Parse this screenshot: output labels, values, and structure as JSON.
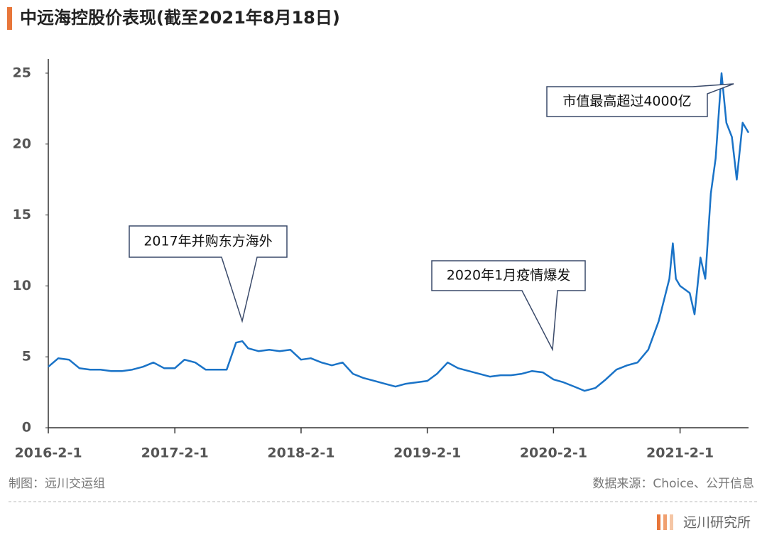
{
  "chart_data": {
    "type": "line",
    "title": "中远海控股价表现(截至2021年8月18日)",
    "x": [
      "2016-2-1",
      "2016-3-1",
      "2016-4-1",
      "2016-5-1",
      "2016-6-1",
      "2016-7-1",
      "2016-8-1",
      "2016-9-1",
      "2016-10-1",
      "2016-11-1",
      "2016-12-1",
      "2017-1-1",
      "2017-2-1",
      "2017-3-1",
      "2017-4-1",
      "2017-5-1",
      "2017-6-1",
      "2017-7-1",
      "2017-7-28",
      "2017-8-15",
      "2017-9-1",
      "2017-10-1",
      "2017-11-1",
      "2017-12-1",
      "2018-1-1",
      "2018-2-1",
      "2018-3-1",
      "2018-4-1",
      "2018-5-1",
      "2018-6-1",
      "2018-7-1",
      "2018-8-1",
      "2018-9-1",
      "2018-10-1",
      "2018-11-1",
      "2018-12-1",
      "2019-1-1",
      "2019-2-1",
      "2019-3-1",
      "2019-4-1",
      "2019-5-1",
      "2019-6-1",
      "2019-7-1",
      "2019-8-1",
      "2019-9-1",
      "2019-10-1",
      "2019-11-1",
      "2019-12-1",
      "2020-1-1",
      "2020-2-1",
      "2020-3-1",
      "2020-4-1",
      "2020-5-1",
      "2020-6-1",
      "2020-7-1",
      "2020-8-1",
      "2020-9-1",
      "2020-10-1",
      "2020-11-1",
      "2020-12-1",
      "2021-1-1",
      "2021-1-11",
      "2021-1-20",
      "2021-2-1",
      "2021-3-1",
      "2021-3-15",
      "2021-4-1",
      "2021-4-15",
      "2021-5-1",
      "2021-5-15",
      "2021-6-1",
      "2021-6-15",
      "2021-7-1",
      "2021-7-15",
      "2021-8-1",
      "2021-8-18"
    ],
    "values": [
      4.3,
      4.9,
      4.8,
      4.2,
      4.1,
      4.1,
      4.0,
      4.0,
      4.1,
      4.3,
      4.6,
      4.2,
      4.2,
      4.8,
      4.6,
      4.1,
      4.1,
      4.1,
      6.0,
      6.1,
      5.6,
      5.4,
      5.5,
      5.4,
      5.5,
      4.8,
      4.9,
      4.6,
      4.4,
      4.6,
      3.8,
      3.5,
      3.3,
      3.1,
      2.9,
      3.1,
      3.2,
      3.3,
      3.8,
      4.6,
      4.2,
      4.0,
      3.8,
      3.6,
      3.7,
      3.7,
      3.8,
      4.0,
      3.9,
      3.4,
      3.2,
      2.9,
      2.6,
      2.8,
      3.4,
      4.1,
      4.4,
      4.6,
      5.5,
      7.5,
      10.5,
      13.0,
      10.5,
      10.0,
      9.5,
      8.0,
      12.0,
      10.5,
      16.5,
      19.0,
      25.0,
      21.5,
      20.5,
      17.5,
      21.5,
      20.8
    ],
    "color": "#1a73c7",
    "xlim": [
      "2016-2-1",
      "2021-8-18"
    ],
    "xticks": [
      "2016-2-1",
      "2017-2-1",
      "2018-2-1",
      "2019-2-1",
      "2020-2-1",
      "2021-2-1"
    ],
    "ylim": [
      0,
      26
    ],
    "yticks": [
      0,
      5,
      10,
      15,
      20,
      25
    ],
    "annotations": [
      "2017年并购东方海外",
      "2020年1月疫情爆发",
      "市值最高超过4000亿"
    ]
  },
  "footer": {
    "left": "制图：远川交运组",
    "right": "数据来源：Choice、公开信息",
    "logo": "远川研究所"
  }
}
